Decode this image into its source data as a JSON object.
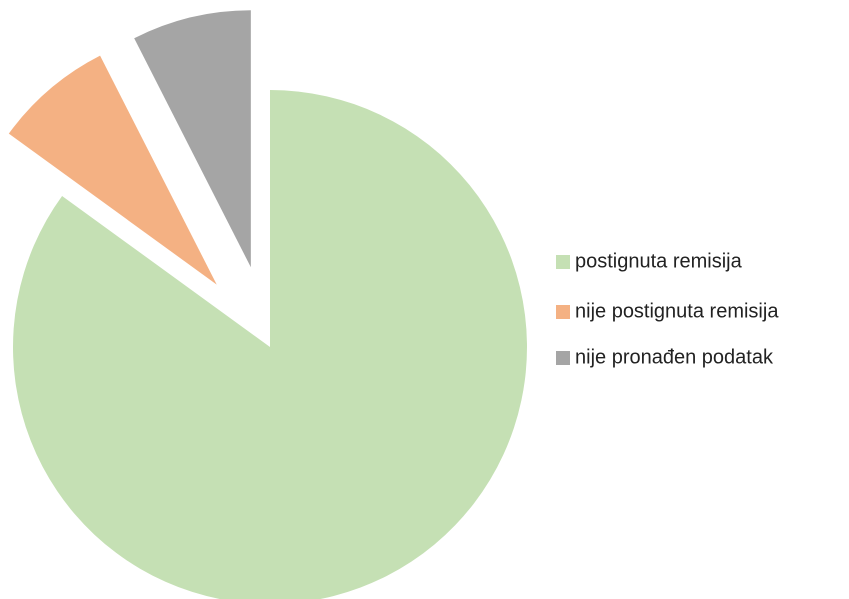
{
  "chart_data": {
    "type": "pie",
    "categories": [
      "postignuta remisija",
      "nije postignuta remisija",
      "nije pronađen podatak"
    ],
    "values": [
      85,
      7.5,
      7.5
    ],
    "colors": [
      "#c5e0b4",
      "#f4b183",
      "#a5a5a5"
    ],
    "legend": "right"
  }
}
